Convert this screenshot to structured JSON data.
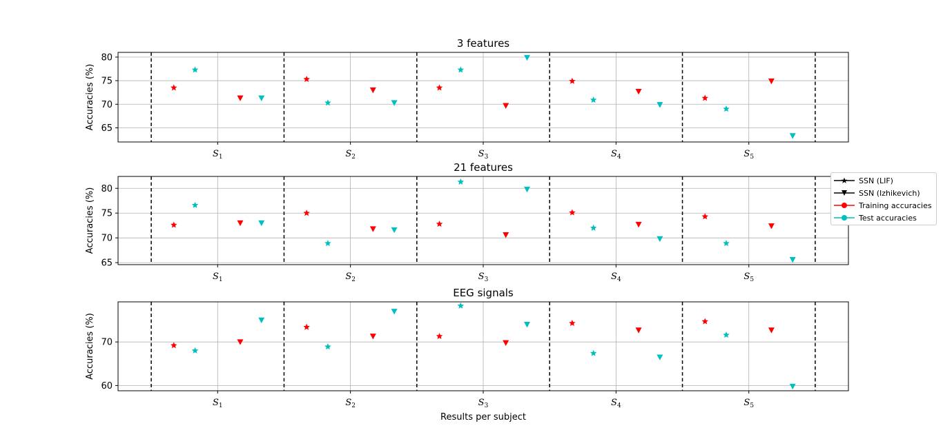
{
  "chart_data": {
    "type": "scatter",
    "xlabel": "Results per subject",
    "categories": [
      "S1",
      "S2",
      "S3",
      "S4",
      "S5"
    ],
    "grid": true,
    "legend": {
      "placement": "right",
      "entries": [
        {
          "label": "SSN (LIF)",
          "marker": "star",
          "color": "#000000"
        },
        {
          "label": "SSN (Izhikevich)",
          "marker": "triangle-down",
          "color": "#000000"
        },
        {
          "label": "Training accuracies",
          "marker": "circle",
          "color": "#ff0000"
        },
        {
          "label": "Test accuracies",
          "marker": "circle",
          "color": "#00bfbf"
        }
      ]
    },
    "colors": {
      "training": "#ff0000",
      "test": "#00bfbf"
    },
    "panels": [
      {
        "title": "3 features",
        "ylabel": "Accuracies (%)",
        "ylim": [
          62,
          81
        ],
        "yticks": [
          65,
          70,
          75,
          80
        ],
        "series": {
          "lif_training": [
            73.5,
            75.3,
            73.5,
            74.9,
            71.3
          ],
          "lif_test": [
            77.3,
            70.3,
            77.3,
            70.9,
            69.0
          ],
          "izh_training": [
            71.3,
            73.0,
            69.7,
            72.7,
            74.9
          ],
          "izh_test": [
            71.3,
            70.3,
            79.9,
            69.9,
            63.3
          ]
        }
      },
      {
        "title": "21 features",
        "ylabel": "Accuracies (%)",
        "ylim": [
          64.6,
          82.4
        ],
        "yticks": [
          65,
          70,
          75,
          80
        ],
        "series": {
          "lif_training": [
            72.6,
            75.0,
            72.8,
            75.1,
            74.3
          ],
          "lif_test": [
            76.6,
            68.9,
            81.3,
            72.0,
            68.9
          ],
          "izh_training": [
            73.0,
            71.8,
            70.6,
            72.7,
            72.4
          ],
          "izh_test": [
            73.0,
            71.6,
            79.8,
            69.8,
            65.6
          ]
        }
      },
      {
        "title": "EEG signals",
        "ylabel": "Accuracies (%)",
        "ylim": [
          58.8,
          79.2
        ],
        "yticks": [
          60,
          70
        ],
        "series": {
          "lif_training": [
            69.2,
            73.4,
            71.3,
            74.3,
            74.7
          ],
          "lif_test": [
            68.0,
            68.9,
            78.3,
            67.4,
            71.6
          ],
          "izh_training": [
            70.0,
            71.3,
            69.8,
            72.7,
            72.7
          ],
          "izh_test": [
            75.0,
            77.0,
            74.0,
            66.5,
            59.8
          ]
        }
      }
    ]
  }
}
